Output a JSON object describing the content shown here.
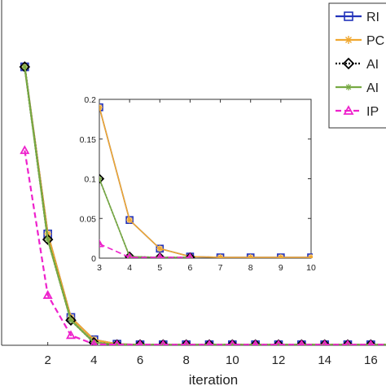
{
  "chart_data": [
    {
      "type": "line",
      "xlabel": "iteration",
      "ylabel": "",
      "xlim": [
        0,
        16.8
      ],
      "ylim": [
        0,
        0.62
      ],
      "xticks": [
        2,
        4,
        6,
        8,
        10,
        12,
        14,
        16
      ],
      "x": [
        1,
        2,
        3,
        4,
        5,
        6,
        7,
        8,
        9,
        10,
        11,
        12,
        13,
        14,
        15,
        16,
        17
      ],
      "series": [
        {
          "name": "RI",
          "color": "#2233bb",
          "dash": "",
          "marker": "square",
          "values": [
            0.5,
            0.2,
            0.05,
            0.01,
            0.002,
            0.001,
            0.001,
            0.001,
            0.001,
            0.001,
            0.001,
            0.001,
            0.001,
            0.001,
            0.001,
            0.001,
            0.001
          ]
        },
        {
          "name": "PC",
          "color": "#f0a830",
          "dash": "",
          "marker": "asterisk",
          "values": [
            0.5,
            0.2,
            0.05,
            0.01,
            0.002,
            0.001,
            0.001,
            0.001,
            0.001,
            0.001,
            0.001,
            0.001,
            0.001,
            0.001,
            0.001,
            0.001,
            0.001
          ]
        },
        {
          "name": "AI",
          "color": "#000000",
          "dash": "2,2",
          "marker": "diamond",
          "values": [
            0.5,
            0.19,
            0.045,
            0.005,
            0.001,
            0.001,
            0.001,
            0.001,
            0.001,
            0.001,
            0.001,
            0.001,
            0.001,
            0.001,
            0.001,
            0.001,
            0.001
          ]
        },
        {
          "name": "AI",
          "color": "#77aa44",
          "dash": "",
          "marker": "star",
          "values": [
            0.5,
            0.19,
            0.045,
            0.005,
            0.001,
            0.001,
            0.001,
            0.001,
            0.001,
            0.001,
            0.001,
            0.001,
            0.001,
            0.001,
            0.001,
            0.001,
            0.001
          ]
        },
        {
          "name": "IP",
          "color": "#ee22cc",
          "dash": "7,4",
          "marker": "triangle",
          "values": [
            0.35,
            0.09,
            0.018,
            0.002,
            0.001,
            0.001,
            0.001,
            0.001,
            0.001,
            0.001,
            0.001,
            0.001,
            0.001,
            0.001,
            0.001,
            0.001,
            0.001
          ]
        }
      ],
      "legend": "top-right"
    },
    {
      "type": "line",
      "role": "inset",
      "xlim": [
        3,
        10
      ],
      "ylim": [
        0,
        0.2
      ],
      "xticks": [
        3,
        4,
        5,
        6,
        7,
        8,
        9,
        10
      ],
      "yticks": [
        0,
        0.05,
        0.1,
        0.15,
        0.2
      ],
      "ytick_labels": [
        "0",
        "0.05",
        "0.1",
        "0.15",
        "0.2"
      ],
      "x": [
        3,
        4,
        5,
        6,
        7,
        8,
        9,
        10
      ],
      "series": [
        {
          "name": "RI",
          "color": "#2233bb",
          "dash": "",
          "marker": "square",
          "values": [
            0.19,
            0.048,
            0.012,
            0.002,
            0.001,
            0.001,
            0.001,
            0.001
          ]
        },
        {
          "name": "PC",
          "color": "#f0a830",
          "dash": "",
          "marker": "asterisk",
          "values": [
            0.19,
            0.048,
            0.012,
            0.002,
            0.001,
            0.001,
            0.001,
            0.001
          ]
        },
        {
          "name": "AI",
          "color": "#000000",
          "dash": "2,2",
          "marker": "diamond",
          "values": [
            0.1,
            0.002,
            0.001,
            0.001,
            null,
            null,
            null,
            null
          ]
        },
        {
          "name": "AI",
          "color": "#77aa44",
          "dash": "",
          "marker": "star",
          "values": [
            0.1,
            0.002,
            0.001,
            0.001,
            null,
            null,
            null,
            null
          ]
        },
        {
          "name": "IP",
          "color": "#ee22cc",
          "dash": "7,4",
          "marker": "triangle",
          "values": [
            0.018,
            0.001,
            0.001,
            0.001,
            null,
            null,
            null,
            null
          ]
        }
      ]
    }
  ]
}
